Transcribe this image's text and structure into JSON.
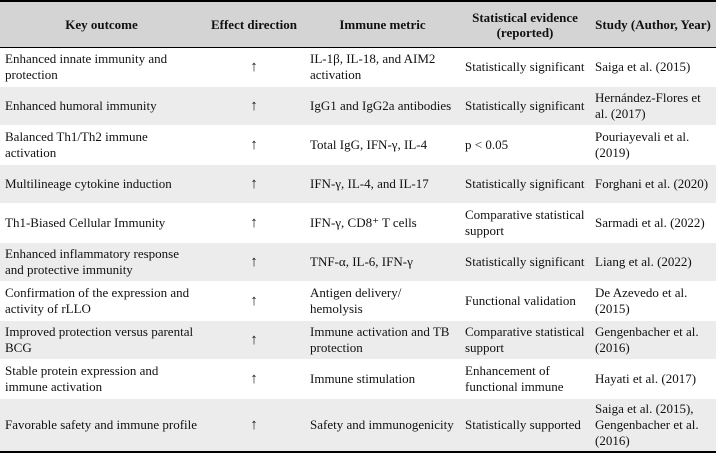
{
  "table": {
    "header": [
      "Key outcome",
      "Effect direction",
      "Immune metric",
      "Statistical evidence (reported)",
      "Study (Author, Year)"
    ],
    "rows": [
      [
        "Enhanced innate immunity and protection",
        "↑",
        "IL-1β, IL-18, and AIM2 activation",
        "Statistically significant",
        "Saiga et al. (2015)"
      ],
      [
        "Enhanced humoral immunity",
        "↑",
        "IgG1 and IgG2a antibodies",
        "Statistically significant",
        "Hernández-Flores et al. (2017)"
      ],
      [
        "Balanced Th1/Th2 immune activation",
        "↑",
        "Total IgG, IFN-γ, IL-4",
        "p < 0.05",
        "Pouriayevali et al. (2019)"
      ],
      [
        "Multilineage cytokine induction",
        "↑",
        "IFN-γ, IL-4, and IL-17",
        "Statistically significant",
        "Forghani et al. (2020)"
      ],
      [
        "Th1-Biased Cellular Immunity",
        "↑",
        "IFN-γ, CD8⁺ T cells",
        "Comparative statistical support",
        "Sarmadi et al. (2022)"
      ],
      [
        "Enhanced inflammatory response and protective immunity",
        "↑",
        "TNF-α, IL-6, IFN-γ",
        "Statistically significant",
        "Liang et al. (2022)"
      ],
      [
        "Confirmation of the expression and activity of rLLO",
        "↑",
        "Antigen delivery/ hemolysis",
        "Functional validation",
        "De Azevedo et al. (2015)"
      ],
      [
        "Improved protection versus parental BCG",
        "↑",
        "Immune activation and TB protection",
        "Comparative statistical support",
        "Gengenbacher et al. (2016)"
      ],
      [
        "Stable protein expression and immune activation",
        "↑",
        "Immune stimulation",
        "Enhancement of functional immune",
        "Hayati et al. (2017)"
      ],
      [
        "Favorable safety and immune profile",
        "↑",
        "Safety and immunogenicity",
        "Statistically supported",
        "Saiga et al. (2015), Gengenbacher et al. (2016)"
      ]
    ]
  }
}
